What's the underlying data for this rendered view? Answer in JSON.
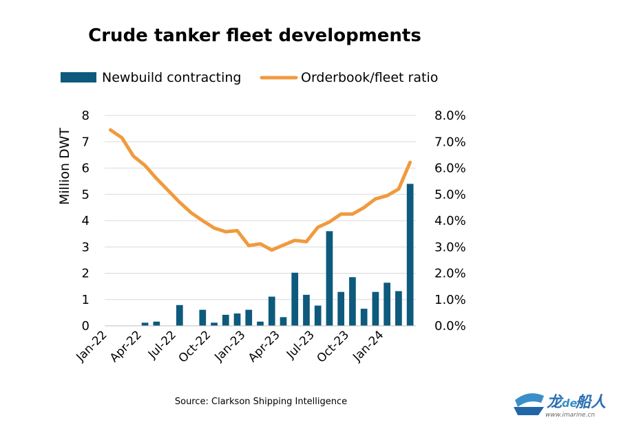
{
  "chart_data": {
    "type": "bar",
    "title": "Crude tanker fleet developments",
    "ylabel": "Million DWT",
    "ylim": [
      0,
      8
    ],
    "y2lim": [
      0,
      8
    ],
    "yticks": [
      "0",
      "1",
      "2",
      "3",
      "4",
      "5",
      "6",
      "7",
      "8"
    ],
    "y2ticks": [
      "0.0%",
      "1.0%",
      "2.0%",
      "3.0%",
      "4.0%",
      "5.0%",
      "6.0%",
      "7.0%",
      "8.0%"
    ],
    "xticklabels": [
      "Jan-22",
      "Apr-22",
      "Jul-22",
      "Oct-22",
      "Jan-23",
      "Apr-23",
      "Jul-23",
      "Oct-23",
      "Jan-24"
    ],
    "legend_position": "top",
    "grid": true,
    "categories": [
      "Jan-22",
      "Feb-22",
      "Mar-22",
      "Apr-22",
      "May-22",
      "Jun-22",
      "Jul-22",
      "Aug-22",
      "Sep-22",
      "Oct-22",
      "Nov-22",
      "Dec-22",
      "Jan-23",
      "Feb-23",
      "Mar-23",
      "Apr-23",
      "May-23",
      "Jun-23",
      "Jul-23",
      "Aug-23",
      "Sep-23",
      "Oct-23",
      "Nov-23",
      "Dec-23",
      "Jan-24",
      "Feb-24",
      "Mar-24"
    ],
    "series": [
      {
        "name": "Newbuild contracting",
        "type": "bar",
        "axis": "left",
        "color": "#0d5a7d",
        "values": [
          0,
          0,
          0,
          0.12,
          0.16,
          0,
          0.79,
          0,
          0.61,
          0.12,
          0.42,
          0.47,
          0.61,
          0.16,
          1.11,
          0.33,
          2.02,
          1.18,
          0.77,
          3.6,
          1.29,
          1.85,
          0.65,
          1.29,
          1.64,
          1.32,
          5.4
        ]
      },
      {
        "name": "Orderbook/fleet ratio",
        "type": "line",
        "axis": "right",
        "unit": "%",
        "color": "#f09a3e",
        "values": [
          7.45,
          7.15,
          6.45,
          6.1,
          5.6,
          5.15,
          4.7,
          4.3,
          4.0,
          3.72,
          3.58,
          3.62,
          3.05,
          3.12,
          2.88,
          3.07,
          3.25,
          3.2,
          3.75,
          3.95,
          4.25,
          4.25,
          4.5,
          4.83,
          4.95,
          5.2,
          6.22
        ]
      }
    ]
  },
  "source": "Source: Clarkson Shipping Intelligence",
  "watermark": {
    "text_1": "龙",
    "text_2": "de",
    "text_3": "船人",
    "url": "www.imarine.cn"
  }
}
